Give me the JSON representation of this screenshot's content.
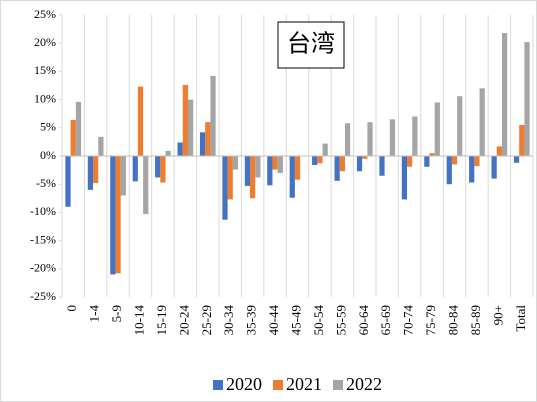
{
  "chart_data": {
    "type": "bar",
    "title": "台湾",
    "categories": [
      "0",
      "1-4",
      "5-9",
      "10-14",
      "15-19",
      "20-24",
      "25-29",
      "30-34",
      "35-39",
      "40-44",
      "45-49",
      "50-54",
      "55-59",
      "60-64",
      "65-69",
      "70-74",
      "75-79",
      "80-84",
      "85-89",
      "90+",
      "Total"
    ],
    "series": [
      {
        "name": "2020",
        "color": "#4472c4",
        "values": [
          -9.0,
          -6.0,
          -21.0,
          -4.5,
          -3.8,
          2.4,
          4.2,
          -11.3,
          -5.3,
          -5.2,
          -7.4,
          -1.6,
          -4.4,
          -2.7,
          -3.5,
          -7.7,
          -1.9,
          -5.0,
          -4.7,
          -4.0,
          -1.2
        ]
      },
      {
        "name": "2021",
        "color": "#ed7d31",
        "values": [
          6.4,
          -4.8,
          -20.8,
          12.3,
          -4.7,
          12.6,
          6.0,
          -7.7,
          -7.5,
          -2.4,
          -4.2,
          -1.3,
          -2.7,
          -0.5,
          0,
          -1.9,
          0.5,
          -1.5,
          -1.8,
          1.7,
          5.5
        ]
      },
      {
        "name": "2022",
        "color": "#a5a5a5",
        "values": [
          9.6,
          3.4,
          -7.0,
          -10.3,
          0.9,
          10.0,
          14.2,
          -2.4,
          -3.8,
          -3.0,
          0,
          2.2,
          5.8,
          6.0,
          6.5,
          7.0,
          9.5,
          10.6,
          12.0,
          21.8,
          20.2
        ]
      }
    ],
    "ylim": [
      -25,
      25
    ],
    "yticks": [
      {
        "value": -25,
        "label": "-25%"
      },
      {
        "value": -20,
        "label": "-20%"
      },
      {
        "value": -15,
        "label": "-15%"
      },
      {
        "value": -10,
        "label": "-10%"
      },
      {
        "value": -5,
        "label": "-5%"
      },
      {
        "value": 0,
        "label": "0%"
      },
      {
        "value": 5,
        "label": "5%"
      },
      {
        "value": 10,
        "label": "10%"
      },
      {
        "value": 15,
        "label": "15%"
      },
      {
        "value": 20,
        "label": "20%"
      },
      {
        "value": 25,
        "label": "25%"
      }
    ],
    "legend": "bottom"
  }
}
